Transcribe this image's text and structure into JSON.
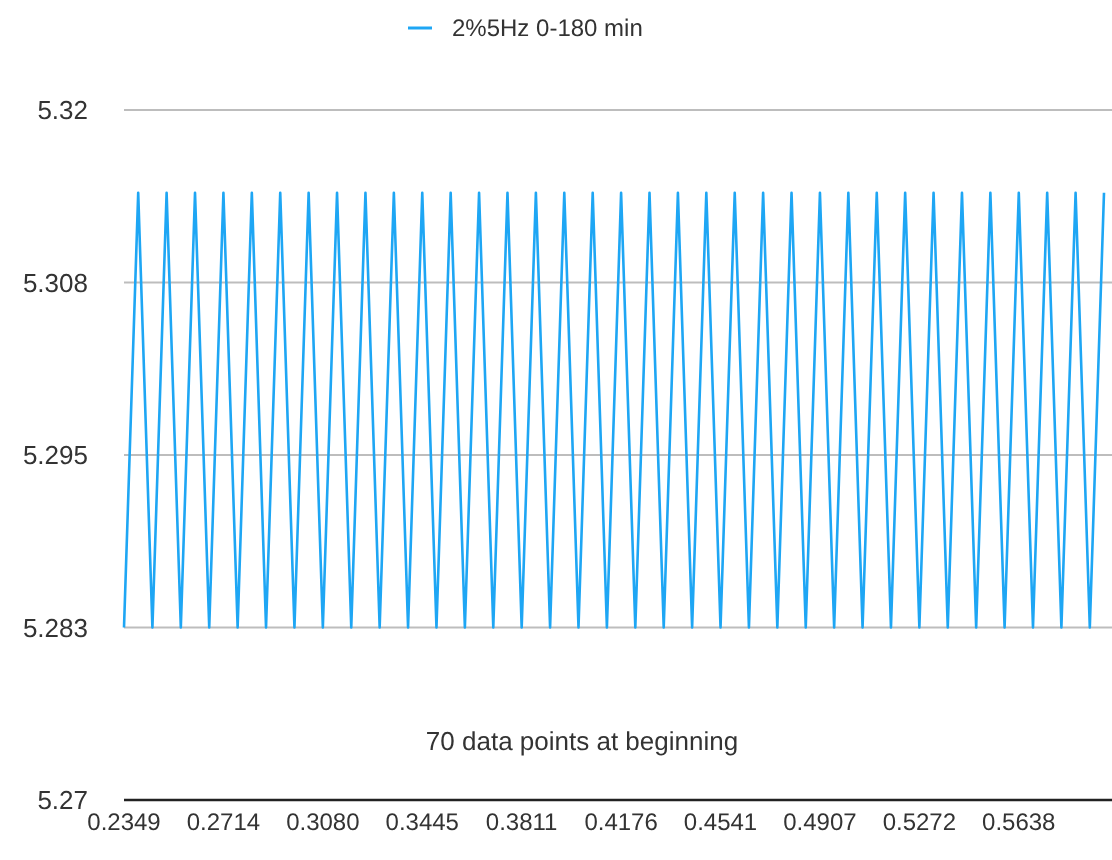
{
  "chart_data": {
    "type": "line",
    "categories": [
      "0.2349",
      null,
      null,
      null,
      null,
      null,
      null,
      "0.2714",
      null,
      null,
      null,
      null,
      null,
      null,
      "0.3080",
      null,
      null,
      null,
      null,
      null,
      null,
      "0.3445",
      null,
      null,
      null,
      null,
      null,
      null,
      "0.3811",
      null,
      null,
      null,
      null,
      null,
      null,
      "0.4176",
      null,
      null,
      null,
      null,
      null,
      null,
      "0.4541",
      null,
      null,
      null,
      null,
      null,
      null,
      "0.4907",
      null,
      null,
      null,
      null,
      null,
      null,
      "0.5272",
      null,
      null,
      null,
      null,
      null,
      null,
      "0.5638",
      null,
      null,
      null,
      null,
      null,
      null
    ],
    "series": [
      {
        "name": "2%5Hz 0-180 min",
        "color": "#1ea6f4",
        "values": [
          5.2825,
          5.314,
          5.2825,
          5.314,
          5.2825,
          5.314,
          5.2825,
          5.314,
          5.2825,
          5.314,
          5.2825,
          5.314,
          5.2825,
          5.314,
          5.2825,
          5.314,
          5.2825,
          5.314,
          5.2825,
          5.314,
          5.2825,
          5.314,
          5.2825,
          5.314,
          5.2825,
          5.314,
          5.2825,
          5.314,
          5.2825,
          5.314,
          5.2825,
          5.314,
          5.2825,
          5.314,
          5.2825,
          5.314,
          5.2825,
          5.314,
          5.2825,
          5.314,
          5.2825,
          5.314,
          5.2825,
          5.314,
          5.2825,
          5.314,
          5.2825,
          5.314,
          5.2825,
          5.314,
          5.2825,
          5.314,
          5.2825,
          5.314,
          5.2825,
          5.314,
          5.2825,
          5.314,
          5.2825,
          5.314,
          5.2825,
          5.314,
          5.2825,
          5.314,
          5.2825,
          5.314,
          5.2825,
          5.314,
          5.2825,
          5.314
        ]
      }
    ],
    "ylim": [
      5.27,
      5.32
    ],
    "yticks": [
      5.27,
      {
        "value": 5.2825,
        "label": "5.283"
      },
      5.295,
      {
        "value": 5.3075,
        "label": "5.308"
      },
      5.32
    ],
    "grid": "y",
    "legend": "top",
    "marker": "none",
    "line_style": "solid",
    "annotations": [
      "70 data points at beginning"
    ]
  }
}
